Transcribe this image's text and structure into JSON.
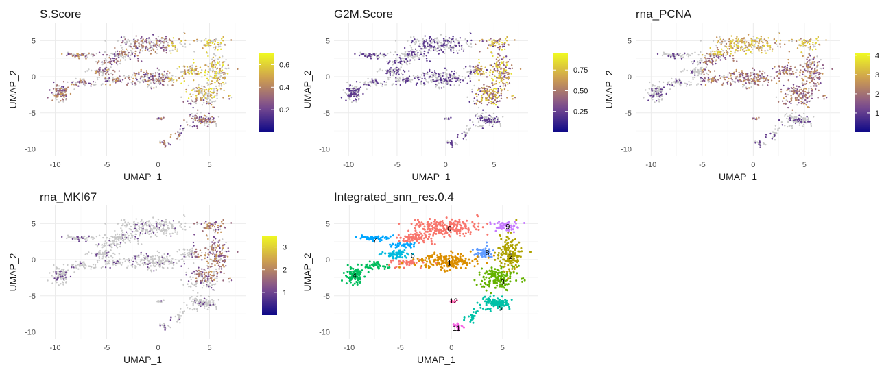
{
  "colors": {
    "na_grey": "#c8c8c8",
    "plasma_low": "#0d0887",
    "plasma_mid": "#7e4e90",
    "plasma_high_mid": "#cc9a52",
    "plasma_high": "#f0f921",
    "grid": "#ebebeb"
  },
  "chart_data": [
    {
      "id": "s-score",
      "type": "scatter",
      "title": "S.Score",
      "xlabel": "UMAP_1",
      "ylabel": "UMAP_2",
      "xlim": [
        -11.5,
        8.5
      ],
      "ylim": [
        -11,
        7.5
      ],
      "x_ticks": [
        -10,
        -5,
        0,
        5
      ],
      "x_tick_labels": [
        "-10",
        "-5",
        "0",
        "5"
      ],
      "y_ticks": [
        5,
        0,
        -5,
        -10
      ],
      "y_tick_labels": [
        "5",
        "0",
        "-5",
        "-10"
      ],
      "grid": true,
      "legend": "right",
      "color_scale": "plasma",
      "legend_ticks": [
        0.2,
        0.4,
        0.6
      ],
      "legend_tick_labels": [
        "0.2",
        "0.4",
        "0.6"
      ],
      "value_range": [
        0.0,
        0.7
      ]
    },
    {
      "id": "g2m-score",
      "type": "scatter",
      "title": "G2M.Score",
      "xlabel": "UMAP_1",
      "ylabel": "UMAP_2",
      "xlim": [
        -11.5,
        8.5
      ],
      "ylim": [
        -11,
        7.5
      ],
      "x_ticks": [
        -10,
        -5,
        0,
        5
      ],
      "x_tick_labels": [
        "-10",
        "-5",
        "0",
        "5"
      ],
      "y_ticks": [
        5,
        0,
        -5,
        -10
      ],
      "y_tick_labels": [
        "5",
        "0",
        "-5",
        "-10"
      ],
      "grid": true,
      "legend": "right",
      "color_scale": "plasma",
      "legend_ticks": [
        0.25,
        0.5,
        0.75
      ],
      "legend_tick_labels": [
        "0.25",
        "0.50",
        "0.75"
      ],
      "value_range": [
        0.0,
        0.95
      ]
    },
    {
      "id": "rna-pcna",
      "type": "scatter",
      "title": "rna_PCNA",
      "xlabel": "UMAP_1",
      "ylabel": "UMAP_2",
      "xlim": [
        -11.5,
        8.5
      ],
      "ylim": [
        -11,
        7.5
      ],
      "x_ticks": [
        -10,
        -5,
        0,
        5
      ],
      "x_tick_labels": [
        "-10",
        "-5",
        "0",
        "5"
      ],
      "y_ticks": [
        5,
        0,
        -5,
        -10
      ],
      "y_tick_labels": [
        "5",
        "0",
        "-5",
        "-10"
      ],
      "grid": true,
      "legend": "right",
      "color_scale": "plasma",
      "legend_ticks": [
        1,
        2,
        3,
        4
      ],
      "legend_tick_labels": [
        "1",
        "2",
        "3",
        "4"
      ],
      "value_range": [
        0.0,
        4.1
      ]
    },
    {
      "id": "rna-mki67",
      "type": "scatter",
      "title": "rna_MKI67",
      "xlabel": "UMAP_1",
      "ylabel": "UMAP_2",
      "xlim": [
        -11.5,
        8.5
      ],
      "ylim": [
        -11,
        7.5
      ],
      "x_ticks": [
        -10,
        -5,
        0,
        5
      ],
      "x_tick_labels": [
        "-10",
        "-5",
        "0",
        "5"
      ],
      "y_ticks": [
        5,
        0,
        -5,
        -10
      ],
      "y_tick_labels": [
        "5",
        "0",
        "-5",
        "-10"
      ],
      "grid": true,
      "legend": "right",
      "color_scale": "plasma",
      "legend_ticks": [
        1,
        2,
        3
      ],
      "legend_tick_labels": [
        "1",
        "2",
        "3"
      ],
      "value_range": [
        0.0,
        3.5
      ]
    },
    {
      "id": "clusters",
      "type": "scatter",
      "title": "Integrated_snn_res.0.4",
      "xlabel": "UMAP_1",
      "ylabel": "UMAP_2",
      "xlim": [
        -11.5,
        8.5
      ],
      "ylim": [
        -11,
        7.5
      ],
      "x_ticks": [
        -10,
        -5,
        0,
        5
      ],
      "x_tick_labels": [
        "-10",
        "-5",
        "0",
        "5"
      ],
      "y_ticks": [
        5,
        0,
        -5,
        -10
      ],
      "y_tick_labels": [
        "5",
        "0",
        "-5",
        "-10"
      ],
      "grid": true,
      "legend": "none",
      "clusters": [
        {
          "label": "0",
          "x": -0.2,
          "y": 4.3,
          "color": "#f8766d"
        },
        {
          "label": "1",
          "x": -0.2,
          "y": -0.4,
          "color": "#db8e00"
        },
        {
          "label": "2",
          "x": 5.8,
          "y": 0.5,
          "color": "#aea200"
        },
        {
          "label": "3",
          "x": 5.0,
          "y": -3.1,
          "color": "#64b200"
        },
        {
          "label": "4",
          "x": -9.5,
          "y": -2.2,
          "color": "#00bd5c"
        },
        {
          "label": "5",
          "x": 4.8,
          "y": -6.7,
          "color": "#00c1a7"
        },
        {
          "label": "6",
          "x": -3.8,
          "y": 0.6,
          "color": "#00bade"
        },
        {
          "label": "7",
          "x": -7.5,
          "y": 2.7,
          "color": "#00a6ff"
        },
        {
          "label": "8",
          "x": 3.5,
          "y": 1.0,
          "color": "#619cff"
        },
        {
          "label": "9",
          "x": 5.5,
          "y": 4.6,
          "color": "#c77cff"
        },
        {
          "label": "11",
          "x": 0.5,
          "y": -9.5,
          "color": "#f564e3"
        },
        {
          "label": "12",
          "x": 0.2,
          "y": -5.7,
          "color": "#ff64b0"
        }
      ]
    }
  ]
}
